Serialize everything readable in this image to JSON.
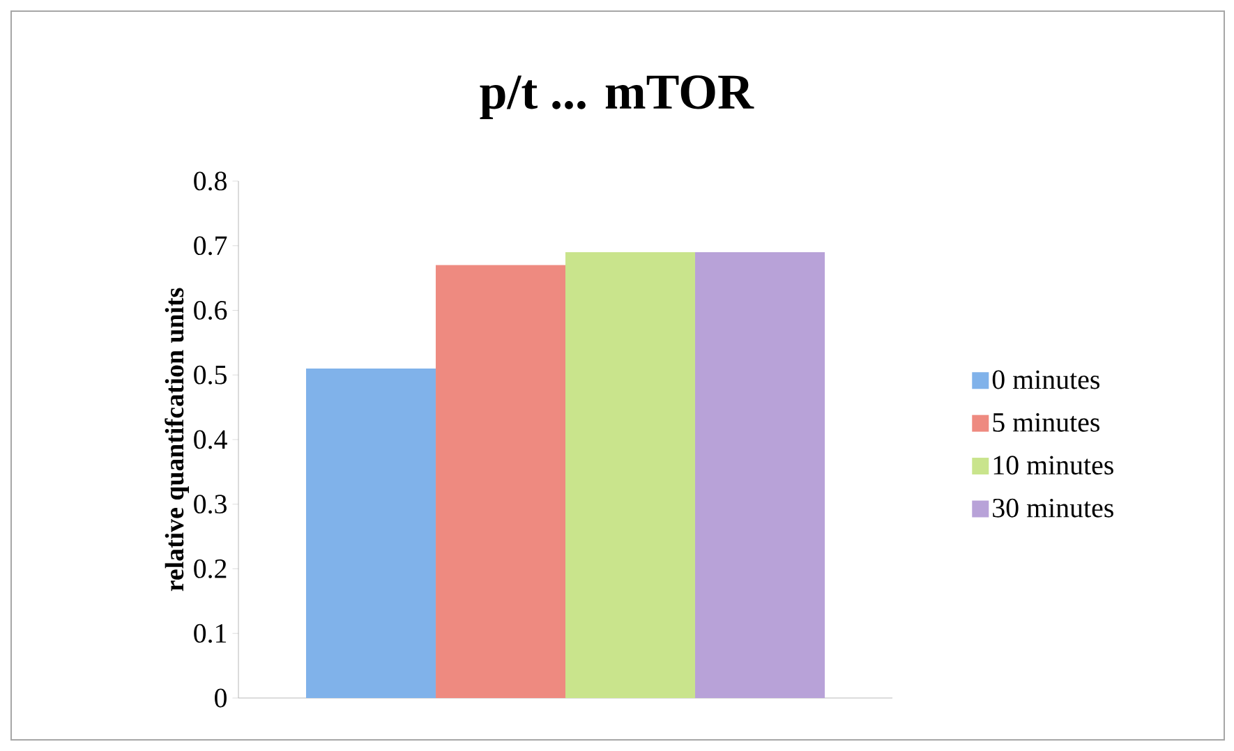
{
  "chart_data": {
    "type": "bar",
    "title": "p/t ... mTOR",
    "ylabel": "relative quantifcation units",
    "categories": [
      null
    ],
    "series": [
      {
        "name": "0 minutes",
        "color": "#80b2ea",
        "values": [
          0.51
        ]
      },
      {
        "name": "5 minutes",
        "color": "#ee8a80",
        "values": [
          0.67
        ]
      },
      {
        "name": "10 minutes",
        "color": "#c9e48c",
        "values": [
          0.69
        ]
      },
      {
        "name": "30 minutes",
        "color": "#b8a2d8",
        "values": [
          0.69
        ]
      }
    ],
    "ylim": [
      0,
      0.8
    ],
    "yticks": [
      0,
      0.1,
      0.2,
      0.3,
      0.4,
      0.5,
      0.6,
      0.7,
      0.8
    ],
    "legend": "right",
    "grid": false
  }
}
